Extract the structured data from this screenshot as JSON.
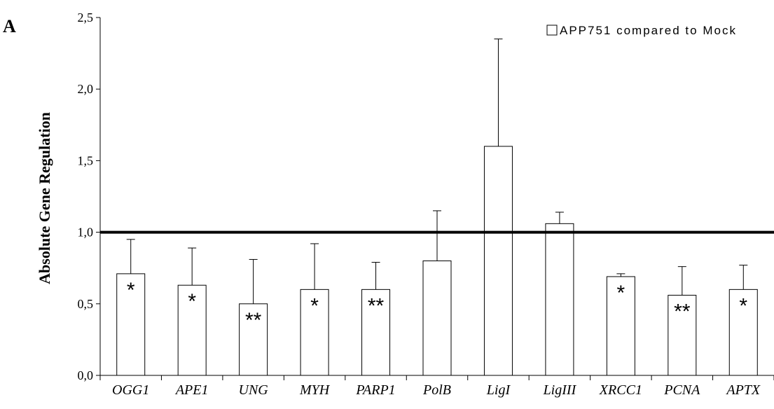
{
  "chart_data": {
    "type": "bar",
    "panel_label": "A",
    "title": "",
    "xlabel": "",
    "ylabel": "Absolute Gene Regulation",
    "ylim": [
      0,
      2.5
    ],
    "yticks": [
      "0,0",
      "0,5",
      "1,0",
      "1,5",
      "2,0",
      "2,5"
    ],
    "reference_line": 1.0,
    "grid": false,
    "legend_position": "top-right",
    "categories": [
      "OGG1",
      "APE1",
      "UNG",
      "MYH",
      "PARP1",
      "PolB",
      "LigI",
      "LigIII",
      "XRCC1",
      "PCNA",
      "APTX"
    ],
    "series": [
      {
        "name": "APP751 compared to Mock",
        "values": [
          0.71,
          0.63,
          0.5,
          0.6,
          0.6,
          0.8,
          1.6,
          1.06,
          0.69,
          0.56,
          0.6
        ],
        "error_upper": [
          0.95,
          0.89,
          0.81,
          0.92,
          0.79,
          1.15,
          2.35,
          1.14,
          0.71,
          0.76,
          0.77
        ],
        "significance": [
          "*",
          "*",
          "**",
          "*",
          "**",
          "",
          "",
          "",
          "*",
          "**",
          "*"
        ]
      }
    ]
  }
}
